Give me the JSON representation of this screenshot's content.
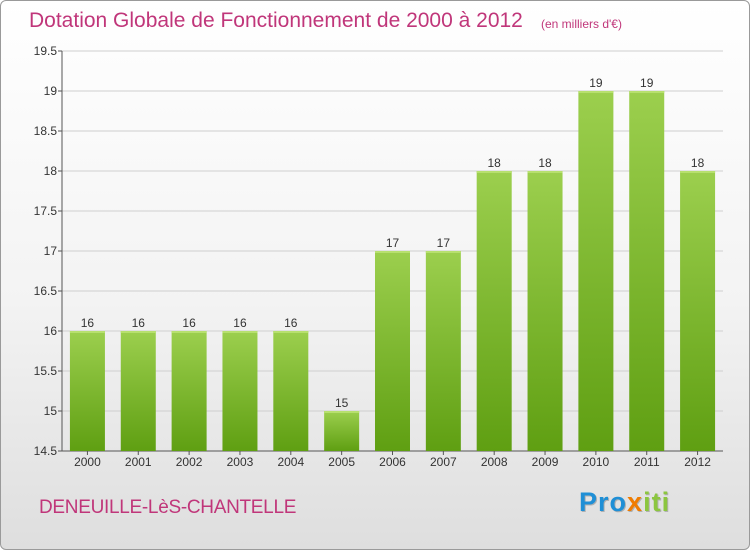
{
  "header": {
    "title": "Dotation Globale de Fonctionnement de 2000 à 2012",
    "subtitle": "(en milliers d'€)"
  },
  "footer": {
    "commune": "DENEUILLE-LèS-CHANTELLE",
    "logo_text": "Proxiti",
    "logo_letters": [
      {
        "char": "P",
        "color": "#1f8fd6"
      },
      {
        "char": "r",
        "color": "#1f8fd6"
      },
      {
        "char": "o",
        "color": "#1f8fd6"
      },
      {
        "char": "x",
        "color": "#f07c00"
      },
      {
        "char": "i",
        "color": "#8cc63f"
      },
      {
        "char": "t",
        "color": "#8cc63f"
      },
      {
        "char": "i",
        "color": "#8cc63f"
      }
    ]
  },
  "colors": {
    "accent": "#c0367a",
    "bar_light": "#9ccf4e",
    "bar_dark": "#5f9f12",
    "grid": "#cfcfcf"
  },
  "chart_data": {
    "type": "bar",
    "categories": [
      "2000",
      "2001",
      "2002",
      "2003",
      "2004",
      "2005",
      "2006",
      "2007",
      "2008",
      "2009",
      "2010",
      "2011",
      "2012"
    ],
    "values": [
      16,
      16,
      16,
      16,
      16,
      15,
      17,
      17,
      18,
      18,
      19,
      19,
      18
    ],
    "data_labels": [
      "16",
      "16",
      "16",
      "16",
      "16",
      "15",
      "17",
      "17",
      "18",
      "18",
      "19",
      "19",
      "18"
    ],
    "yticks": [
      14.5,
      15,
      15.5,
      16,
      16.5,
      17,
      17.5,
      18,
      18.5,
      19,
      19.5
    ],
    "ytick_labels": [
      "14.5",
      "15",
      "15.5",
      "16",
      "16.5",
      "17",
      "17.5",
      "18",
      "18.5",
      "19",
      "19.5"
    ],
    "ylim": [
      14.5,
      19.5
    ],
    "title": "Dotation Globale de Fonctionnement de 2000 à 2012",
    "xlabel": "",
    "ylabel": "",
    "grid": true,
    "legend": "none"
  }
}
